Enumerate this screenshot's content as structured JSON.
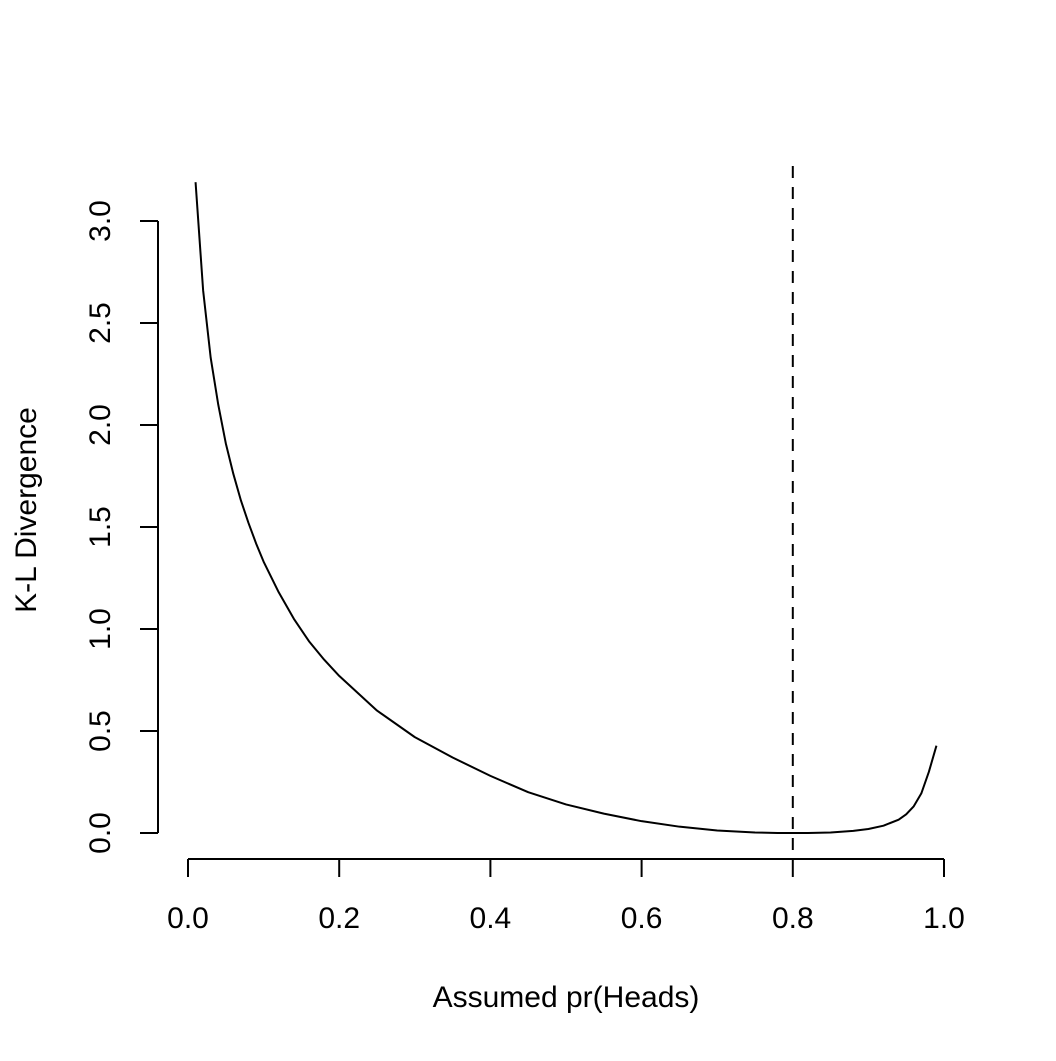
{
  "chart_data": {
    "type": "line",
    "title": "",
    "xlabel": "Assumed pr(Heads)",
    "ylabel": "K-L Divergence",
    "xlim": [
      0.0,
      1.0
    ],
    "ylim": [
      0.0,
      3.0
    ],
    "x_ticks": [
      "0.0",
      "0.2",
      "0.4",
      "0.6",
      "0.8",
      "1.0"
    ],
    "y_ticks": [
      "0.0",
      "0.5",
      "1.0",
      "1.5",
      "2.0",
      "2.5",
      "3.0"
    ],
    "grid": false,
    "legend": "none",
    "true_p": 0.8,
    "series": [
      {
        "x": [
          0.01,
          0.02,
          0.03,
          0.04,
          0.05,
          0.06,
          0.07,
          0.08,
          0.09,
          0.1,
          0.12,
          0.14,
          0.16,
          0.18,
          0.2,
          0.25,
          0.3,
          0.35,
          0.4,
          0.45,
          0.5,
          0.55,
          0.6,
          0.65,
          0.7,
          0.75,
          0.78,
          0.8,
          0.82,
          0.85,
          0.88,
          0.9,
          0.92,
          0.94,
          0.95,
          0.96,
          0.97,
          0.98,
          0.99
        ],
        "y": [
          3.19,
          2.66,
          2.33,
          2.1,
          1.91,
          1.76,
          1.63,
          1.52,
          1.42,
          1.33,
          1.18,
          1.05,
          0.94,
          0.85,
          0.77,
          0.6,
          0.47,
          0.37,
          0.28,
          0.2,
          0.14,
          0.095,
          0.058,
          0.031,
          0.012,
          0.0023,
          0.0002,
          0.0,
          0.0003,
          0.0027,
          0.0102,
          0.0196,
          0.0358,
          0.0655,
          0.0915,
          0.131,
          0.194,
          0.3,
          0.428
        ]
      }
    ]
  }
}
